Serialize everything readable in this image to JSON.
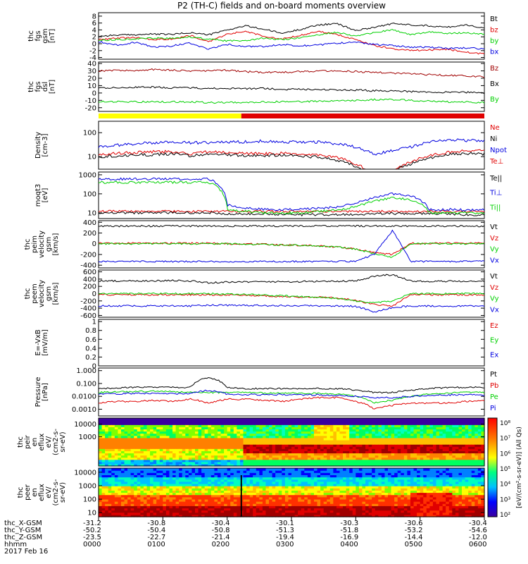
{
  "title": "P2 (TH-C) fields and on-board moments overview",
  "date_label": "2017 Feb 16",
  "colors": {
    "black": "#000000",
    "red": "#e00000",
    "green": "#00d000",
    "blue": "#0000e0",
    "darkred": "#a00000",
    "yellow": "#ffff00"
  },
  "chart_data": [
    {
      "type": "line",
      "ylabel": "thc fgs gsm [nT]",
      "yticks": [
        -4,
        -2,
        0,
        2,
        4,
        6,
        8
      ],
      "ylim": [
        -4.5,
        9
      ],
      "series": [
        {
          "name": "Bt",
          "color": "black",
          "values": [
            2.2,
            2.5,
            2.6,
            2.8,
            2.7,
            3.2,
            2.6,
            4.0,
            5.2,
            4.2,
            3.0,
            4.2,
            5.5,
            5.8,
            3.8,
            4.8,
            5.8,
            5.5,
            5.2,
            4.8,
            5.5,
            4.5
          ]
        },
        {
          "name": "bz",
          "color": "red",
          "values": [
            1.2,
            1.6,
            1.8,
            1.2,
            1.4,
            2.4,
            0.5,
            2.8,
            3.6,
            2.2,
            1.4,
            2.5,
            3.6,
            2.6,
            1.2,
            -0.5,
            -1.5,
            -2.0,
            -1.8,
            -1.6,
            -2.5,
            -3.0
          ]
        },
        {
          "name": "by",
          "color": "green",
          "values": [
            1.0,
            1.2,
            1.4,
            1.6,
            1.5,
            2.0,
            1.3,
            0.8,
            1.0,
            1.6,
            1.2,
            1.8,
            2.5,
            3.4,
            2.2,
            3.2,
            4.0,
            2.6,
            3.4,
            3.0,
            3.2,
            2.8
          ]
        },
        {
          "name": "bx",
          "color": "blue",
          "values": [
            0.6,
            -0.4,
            0.4,
            -1.0,
            -0.6,
            0.2,
            -1.6,
            -0.2,
            -0.8,
            -0.8,
            -0.2,
            -0.6,
            -0.4,
            0.2,
            0.4,
            -0.2,
            -0.5,
            -1.0,
            -1.0,
            -1.4,
            -1.2,
            -1.5
          ]
        }
      ]
    },
    {
      "type": "line",
      "ylabel": "thc fgs dsl [nT]",
      "yticks": [
        -20,
        -10,
        0,
        10,
        20,
        30,
        40
      ],
      "ylim": [
        -25,
        42
      ],
      "series": [
        {
          "name": "Bz",
          "color": "darkred",
          "values": [
            30,
            31,
            30,
            32,
            31,
            30,
            30,
            31,
            29,
            28,
            28,
            29,
            30,
            30,
            29,
            28,
            27,
            26,
            25,
            24,
            23,
            22
          ]
        },
        {
          "name": "Bx",
          "color": "black",
          "values": [
            7,
            7,
            8,
            8,
            7,
            7,
            6,
            6,
            6,
            6,
            5,
            5,
            5,
            4,
            4,
            3,
            3,
            2,
            1,
            1,
            1,
            0
          ]
        },
        {
          "name": "By",
          "color": "green",
          "values": [
            -12,
            -12,
            -12,
            -12,
            -12,
            -12,
            -13,
            -13,
            -13,
            -12,
            -12,
            -12,
            -11,
            -11,
            -10,
            -9,
            -9,
            -10,
            -11,
            -12,
            -12,
            -13
          ]
        }
      ]
    },
    {
      "type": "bar",
      "ylabel": "",
      "segments": [
        {
          "start": 0,
          "end": 0.37,
          "color": "yellow"
        },
        {
          "start": 0.37,
          "end": 1,
          "color": "red"
        }
      ]
    },
    {
      "type": "line",
      "ylabel": "Density [cm-3]",
      "scale": "log",
      "yticks": [
        10,
        100
      ],
      "ylim": [
        3,
        300
      ],
      "series": [
        {
          "name": "Ne",
          "color": "red",
          "values": [
            12,
            14,
            15,
            16,
            16,
            13,
            16,
            15,
            14,
            13,
            14,
            12,
            12,
            9,
            5,
            1.5,
            2,
            6,
            11,
            15,
            18,
            17
          ]
        },
        {
          "name": "Ni",
          "color": "black",
          "values": [
            10,
            11,
            12,
            12,
            13,
            11,
            13,
            12,
            11,
            11,
            12,
            10,
            10,
            7,
            4,
            1.8,
            2.2,
            5,
            9,
            12,
            14,
            13
          ]
        },
        {
          "name": "Npot",
          "color": "blue",
          "values": [
            25,
            30,
            35,
            38,
            40,
            38,
            38,
            40,
            42,
            45,
            42,
            40,
            40,
            35,
            25,
            12,
            18,
            25,
            40,
            50,
            48,
            45
          ]
        }
      ]
    },
    {
      "type": "line",
      "ylabel": "moqt3 [eV]",
      "scale": "log",
      "yticks": [
        10,
        100,
        1000
      ],
      "ylim": [
        5,
        1400
      ],
      "series": [
        {
          "name": "Te⊥",
          "color": "red",
          "values": [
            12,
            12,
            12,
            12,
            12,
            12,
            12,
            12,
            12,
            12,
            12,
            12,
            12,
            12,
            12,
            12,
            12,
            12,
            12,
            12,
            12,
            12
          ]
        },
        {
          "name": "Te||",
          "color": "black",
          "values": [
            10,
            10,
            10,
            10,
            10,
            10,
            10,
            9,
            9,
            9,
            8,
            8,
            8,
            8,
            8,
            9,
            9,
            9,
            9,
            9,
            8,
            8
          ]
        },
        {
          "name": "Ti⊥",
          "color": "blue",
          "values": [
            600,
            600,
            600,
            600,
            600,
            600,
            600,
            25,
            18,
            15,
            15,
            15,
            18,
            20,
            30,
            60,
            100,
            80,
            15,
            15,
            14,
            14
          ]
        },
        {
          "name": "Ti||",
          "color": "green",
          "values": [
            400,
            400,
            400,
            400,
            400,
            400,
            400,
            15,
            12,
            10,
            10,
            10,
            12,
            14,
            20,
            40,
            60,
            50,
            10,
            10,
            10,
            10
          ]
        }
      ]
    },
    {
      "type": "line",
      "ylabel": "thc peim velocity gsm [km/s]",
      "yticks": [
        -400,
        -200,
        0,
        200,
        400
      ],
      "ylim": [
        -450,
        430
      ],
      "series": [
        {
          "name": "Vt",
          "color": "black",
          "values": [
            330,
            330,
            330,
            330,
            330,
            330,
            330,
            330,
            330,
            330,
            330,
            330,
            330,
            330,
            330,
            330,
            330,
            330,
            330,
            330,
            330,
            330
          ]
        },
        {
          "name": "Vz",
          "color": "red",
          "values": [
            10,
            10,
            10,
            10,
            10,
            10,
            10,
            0,
            -5,
            -10,
            -20,
            -30,
            -40,
            -60,
            -100,
            -160,
            -200,
            10,
            10,
            10,
            10,
            10
          ]
        },
        {
          "name": "Vy",
          "color": "green",
          "values": [
            0,
            0,
            0,
            0,
            0,
            0,
            0,
            0,
            -10,
            -15,
            -25,
            -30,
            -40,
            -60,
            -100,
            -180,
            -250,
            0,
            0,
            0,
            0,
            0
          ]
        },
        {
          "name": "Vx",
          "color": "blue",
          "values": [
            -330,
            -330,
            -330,
            -330,
            -330,
            -330,
            -330,
            -330,
            -330,
            -330,
            -330,
            -330,
            -330,
            -330,
            -330,
            -200,
            250,
            -330,
            -330,
            -330,
            -330,
            -330
          ]
        }
      ]
    },
    {
      "type": "line",
      "ylabel": "thc peem velocity gsm [km/s]",
      "yticks": [
        -600,
        -400,
        -200,
        0,
        200,
        400,
        600
      ],
      "ylim": [
        -650,
        650
      ],
      "series": [
        {
          "name": "Vt",
          "color": "black",
          "values": [
            350,
            350,
            350,
            350,
            360,
            350,
            300,
            320,
            320,
            320,
            330,
            330,
            340,
            340,
            350,
            480,
            520,
            350,
            340,
            340,
            340,
            340
          ]
        },
        {
          "name": "Vz",
          "color": "red",
          "values": [
            -30,
            -30,
            -30,
            -30,
            -30,
            -30,
            -30,
            -40,
            -50,
            -60,
            -80,
            -90,
            -100,
            -120,
            -180,
            -300,
            -340,
            -30,
            -30,
            -30,
            -30,
            -30
          ]
        },
        {
          "name": "Vy",
          "color": "green",
          "values": [
            0,
            0,
            0,
            0,
            0,
            0,
            0,
            -10,
            -20,
            -40,
            -60,
            -80,
            -100,
            -130,
            -200,
            -260,
            -200,
            0,
            0,
            0,
            0,
            0
          ]
        },
        {
          "name": "Vx",
          "color": "blue",
          "values": [
            -340,
            -340,
            -340,
            -340,
            -340,
            -340,
            -320,
            -320,
            -320,
            -330,
            -330,
            -330,
            -340,
            -340,
            -350,
            -500,
            -380,
            -340,
            -340,
            -340,
            -340,
            -340
          ]
        }
      ]
    },
    {
      "type": "line",
      "ylabel": "E=-VxB [mV/m]",
      "yticks": [
        0,
        0.2,
        0.4,
        0.6,
        0.8,
        1.0
      ],
      "ylim": [
        0,
        1.05
      ],
      "series": [
        {
          "name": "Ez",
          "color": "red",
          "values": []
        },
        {
          "name": "Ey",
          "color": "green",
          "values": []
        },
        {
          "name": "Ex",
          "color": "blue",
          "values": []
        }
      ]
    },
    {
      "type": "line",
      "ylabel": "Pressure [nPa]",
      "scale": "log",
      "yticks": [
        0.001,
        0.01,
        0.1,
        1
      ],
      "ylim": [
        0.0003,
        1.6
      ],
      "ytick_labels": [
        "0.0010",
        "0.0100",
        "0.100",
        "1.000"
      ],
      "series": [
        {
          "name": "Pt",
          "color": "black",
          "values": [
            0.04,
            0.045,
            0.05,
            0.05,
            0.05,
            0.05,
            0.3,
            0.05,
            0.04,
            0.04,
            0.04,
            0.04,
            0.04,
            0.04,
            0.03,
            0.02,
            0.02,
            0.03,
            0.04,
            0.05,
            0.05,
            0.05
          ]
        },
        {
          "name": "Pb",
          "color": "red",
          "values": [
            0.003,
            0.004,
            0.004,
            0.005,
            0.004,
            0.006,
            0.003,
            0.006,
            0.006,
            0.005,
            0.004,
            0.006,
            0.008,
            0.008,
            0.004,
            0.001,
            0.002,
            0.003,
            0.003,
            0.003,
            0.004,
            0.005
          ]
        },
        {
          "name": "Pe",
          "color": "green",
          "values": [
            0.02,
            0.022,
            0.024,
            0.025,
            0.024,
            0.02,
            0.02,
            0.02,
            0.02,
            0.018,
            0.018,
            0.017,
            0.017,
            0.015,
            0.01,
            0.003,
            0.005,
            0.01,
            0.015,
            0.018,
            0.02,
            0.02
          ]
        },
        {
          "name": "Pi",
          "color": "blue",
          "values": [
            0.015,
            0.016,
            0.017,
            0.017,
            0.016,
            0.016,
            0.03,
            0.015,
            0.014,
            0.013,
            0.014,
            0.013,
            0.013,
            0.012,
            0.01,
            0.008,
            0.008,
            0.01,
            0.012,
            0.013,
            0.013,
            0.013
          ]
        }
      ]
    },
    {
      "type": "heatmap",
      "ylabel": "thc peir en eflux eV/(cm2-s-sr-eV)",
      "scale": "log",
      "yticks": [
        1000,
        10000
      ],
      "ytick_labels": [
        "1000",
        "10000"
      ],
      "ylim": [
        5,
        30000
      ]
    },
    {
      "type": "heatmap",
      "ylabel": "thc peer en eflux eV/(cm2-s-sr-eV)",
      "scale": "log",
      "yticks": [
        10,
        100,
        1000,
        10000
      ],
      "ytick_labels": [
        "10",
        "100",
        "1000",
        "10000"
      ],
      "ylim": [
        5,
        20000
      ]
    }
  ],
  "colorbar": {
    "labels": [
      "10⁸",
      "10⁷",
      "10⁶",
      "10⁵",
      "10⁴",
      "10³",
      "10²"
    ],
    "unit": "[eV/(cm²-s-sr-eV)] (All Qs)"
  },
  "panel_labels": [
    [
      "thc",
      "fgs",
      "gsm",
      "[nT]"
    ],
    [
      "thc",
      "fgs",
      "dsl",
      "[nT]"
    ],
    [],
    [
      "Density",
      "[cm-3]"
    ],
    [
      "moqt3",
      "[eV]"
    ],
    [
      "thc",
      "peim",
      "velocity",
      "gsm",
      "[km/s]"
    ],
    [
      "thc",
      "peem",
      "velocity",
      "gsm",
      "[km/s]"
    ],
    [
      "E=-VxB",
      "[mV/m]"
    ],
    [
      "Pressure",
      "[nPa]"
    ],
    [
      "thc",
      "peir",
      "en",
      "eflux",
      "eV/",
      "(cm2-s-",
      "sr-eV)"
    ],
    [
      "thc",
      "peer",
      "en",
      "eflux",
      "eV/",
      "(cm2-s-",
      "sr-eV)"
    ]
  ],
  "legend_text": [
    [
      "Bt",
      "bz",
      "by",
      "bx"
    ],
    [
      "Bz",
      "Bx",
      "By"
    ],
    [],
    [
      "Ne",
      "Ni",
      "Npot",
      "Te⊥"
    ],
    [
      "Te||",
      "Ti⊥",
      "Ti||"
    ],
    [
      "Vt",
      "Vz",
      "Vy",
      "Vx"
    ],
    [
      "Vt",
      "Vz",
      "Vy",
      "Vx"
    ],
    [
      "Ez",
      "Ey",
      "Ex"
    ],
    [
      "Pt",
      "Pb",
      "Pe",
      "Pi"
    ],
    [],
    []
  ],
  "x_axis": {
    "row_labels": [
      "thc_X-GSM",
      "thc_Y-GSM",
      "thc_Z-GSM",
      "hhmm"
    ],
    "ticks": [
      {
        "x": "-31.2",
        "y": "-50.2",
        "z": "-23.5",
        "t": "0000"
      },
      {
        "x": "-30.8",
        "y": "-50.4",
        "z": "-22.7",
        "t": "0100"
      },
      {
        "x": "-30.4",
        "y": "-50.8",
        "z": "-21.4",
        "t": "0200"
      },
      {
        "x": "-30.1",
        "y": "-51.3",
        "z": "-19.4",
        "t": "0300"
      },
      {
        "x": "-30.3",
        "y": "-51.8",
        "z": "-16.9",
        "t": "0400"
      },
      {
        "x": "-30.6",
        "y": "-53.2",
        "z": "-14.4",
        "t": "0500"
      },
      {
        "x": "-30.4",
        "y": "-54.6",
        "z": "-12.0",
        "t": "0600"
      }
    ]
  }
}
